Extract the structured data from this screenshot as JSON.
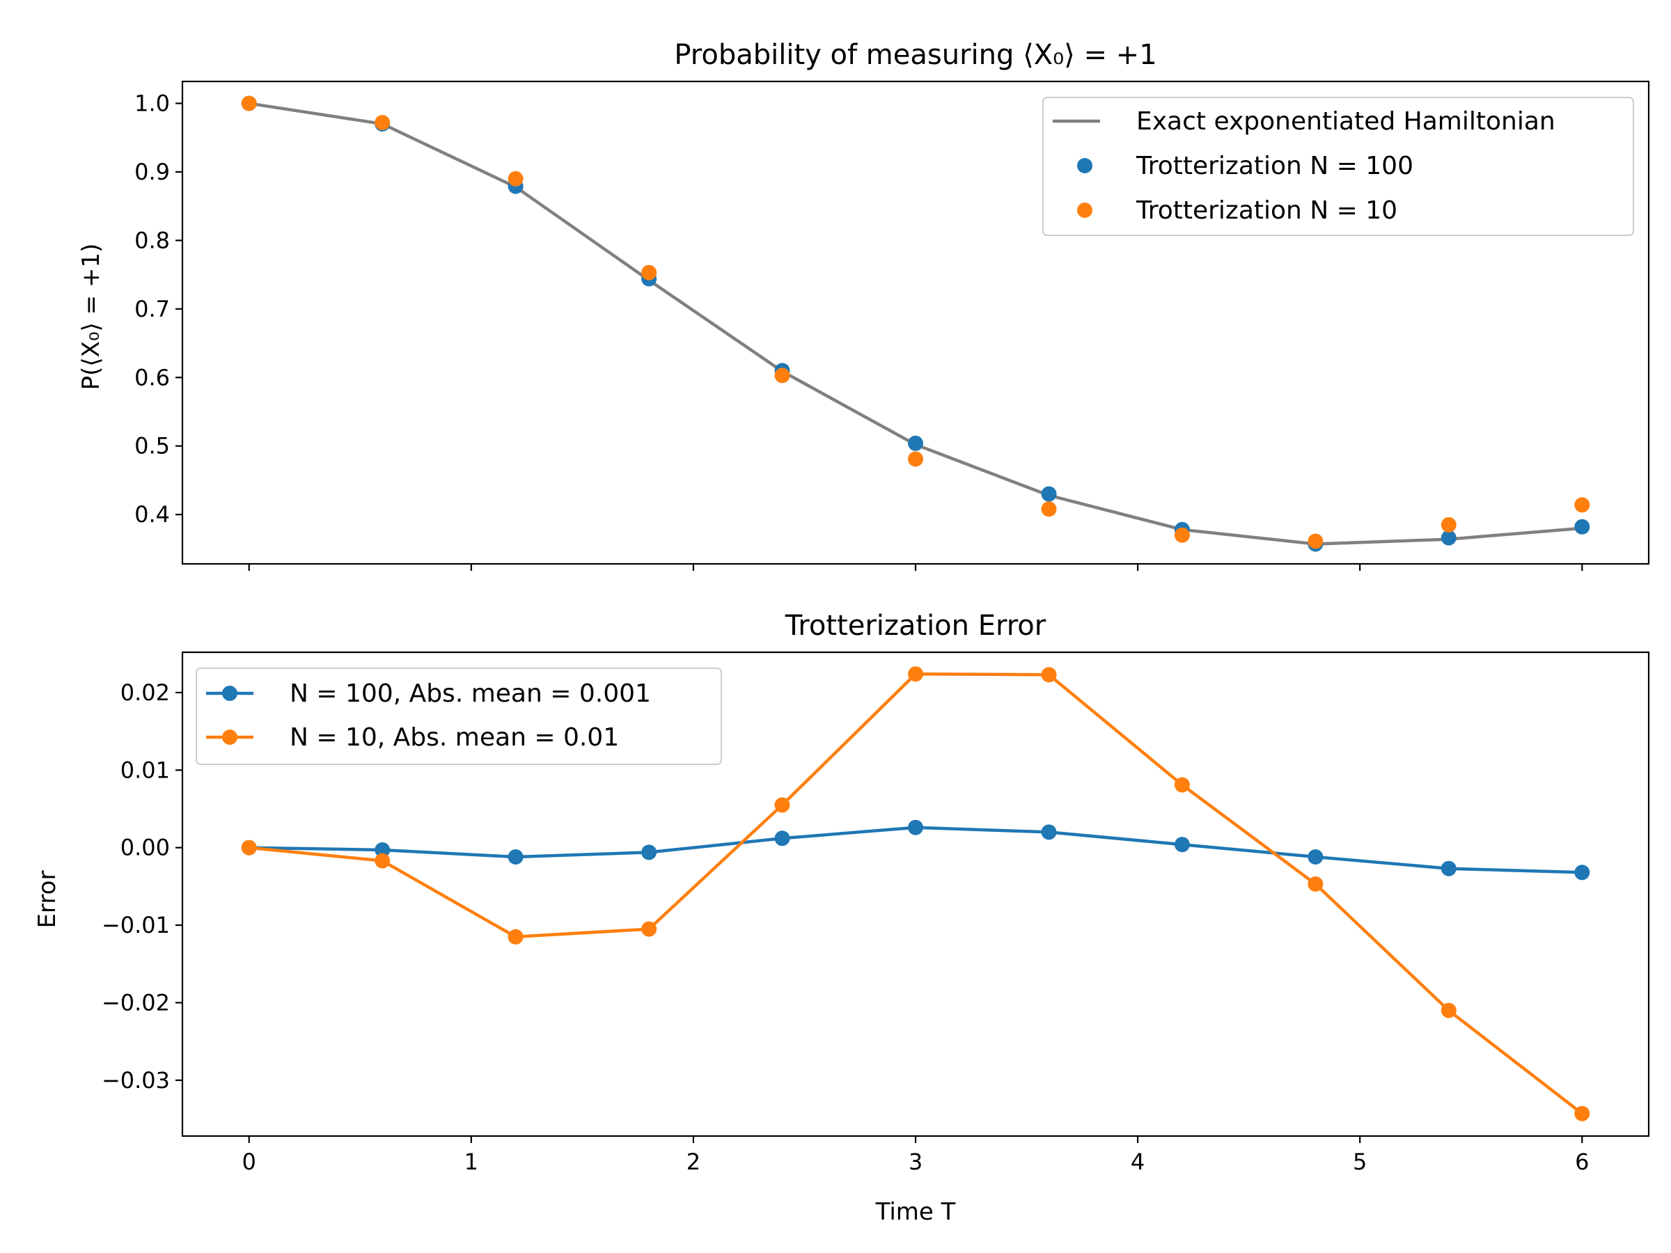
{
  "chart_data": [
    {
      "type": "line",
      "title": "Probability of measuring ⟨X₀⟩ = +1",
      "ylabel": "P(⟨X₀⟩ = +1)",
      "xlabel": "",
      "xlim": [
        -0.3,
        6.3
      ],
      "ylim": [
        0.328,
        1.032
      ],
      "xticks": [
        0,
        1,
        2,
        3,
        4,
        5,
        6
      ],
      "yticks": [
        0.4,
        0.5,
        0.6,
        0.7,
        0.8,
        0.9,
        1.0
      ],
      "yticklabels": [
        "0.4",
        "0.5",
        "0.6",
        "0.7",
        "0.8",
        "0.9",
        "1.0"
      ],
      "show_xticklabels": false,
      "grid": false,
      "legend_placement": "top-right",
      "x": [
        0,
        0.6,
        1.2,
        1.8,
        2.4,
        3.0,
        3.6,
        4.2,
        4.8,
        5.4,
        6.0
      ],
      "series": [
        {
          "name": "Exact exponentiated Hamiltonian",
          "kind": "line",
          "color": "#808080",
          "values": [
            1.0,
            0.97,
            0.878,
            0.742,
            0.609,
            0.502,
            0.428,
            0.378,
            0.357,
            0.364,
            0.38
          ]
        },
        {
          "name": "Trotterization N = 100",
          "kind": "scatter",
          "color": "#1f77b4",
          "values": [
            1.0,
            0.97,
            0.879,
            0.744,
            0.61,
            0.504,
            0.43,
            0.378,
            0.357,
            0.366,
            0.382
          ]
        },
        {
          "name": "Trotterization N = 10",
          "kind": "scatter",
          "color": "#ff7f0e",
          "values": [
            1.0,
            0.972,
            0.89,
            0.753,
            0.603,
            0.481,
            0.408,
            0.37,
            0.361,
            0.385,
            0.414
          ]
        }
      ]
    },
    {
      "type": "line",
      "title": "Trotterization Error",
      "ylabel": "Error",
      "xlabel": "Time T",
      "xlim": [
        -0.3,
        6.3
      ],
      "ylim": [
        -0.0372,
        0.0252
      ],
      "xticks": [
        0,
        1,
        2,
        3,
        4,
        5,
        6
      ],
      "xticklabels": [
        "0",
        "1",
        "2",
        "3",
        "4",
        "5",
        "6"
      ],
      "yticks": [
        -0.03,
        -0.02,
        -0.01,
        0.0,
        0.01,
        0.02
      ],
      "yticklabels": [
        "−0.03",
        "−0.02",
        "−0.01",
        "0.00",
        "0.01",
        "0.02"
      ],
      "grid": false,
      "legend_placement": "top-left",
      "x": [
        0,
        0.6,
        1.2,
        1.8,
        2.4,
        3.0,
        3.6,
        4.2,
        4.8,
        5.4,
        6.0
      ],
      "series": [
        {
          "name": "N = 100, Abs. mean = 0.001",
          "kind": "line-marker",
          "color": "#1f77b4",
          "values": [
            0.0,
            -0.0003,
            -0.0012,
            -0.0006,
            0.0012,
            0.0026,
            0.002,
            0.0004,
            -0.0012,
            -0.0027,
            -0.0032
          ]
        },
        {
          "name": "N = 10, Abs. mean = 0.01",
          "kind": "line-marker",
          "color": "#ff7f0e",
          "values": [
            0.0,
            -0.0017,
            -0.0115,
            -0.0105,
            0.0055,
            0.0224,
            0.0223,
            0.0081,
            -0.0047,
            -0.021,
            -0.0343
          ]
        }
      ]
    }
  ]
}
